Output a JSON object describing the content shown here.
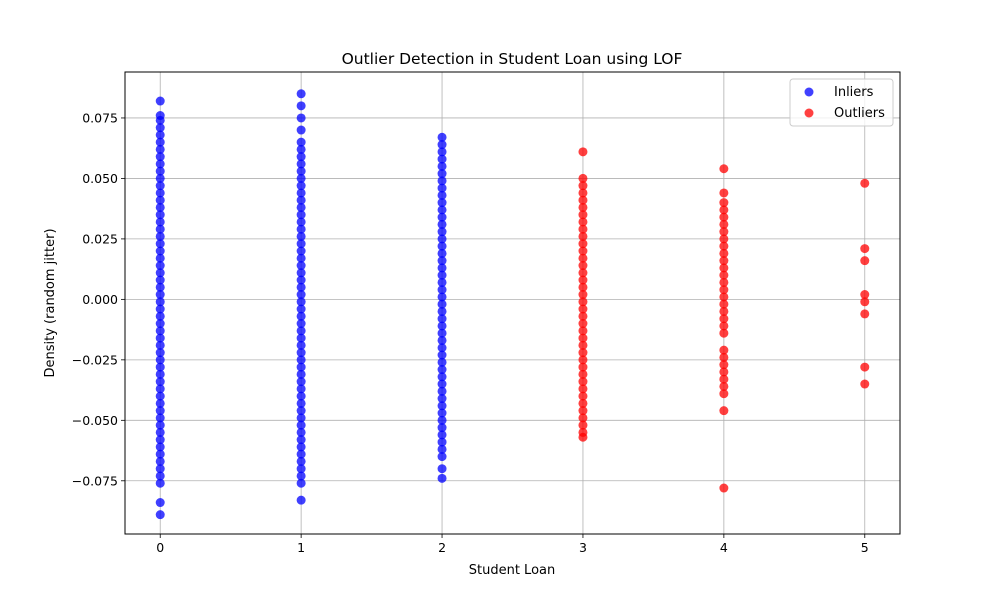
{
  "chart_data": {
    "type": "scatter",
    "title": "Outlier Detection in Student Loan using LOF",
    "xlabel": "Student Loan",
    "ylabel": "Density (random jitter)",
    "xlim": [
      -0.25,
      5.25
    ],
    "ylim": [
      -0.097,
      0.094
    ],
    "xticks": [
      0,
      1,
      2,
      3,
      4,
      5
    ],
    "xtick_labels": [
      "0",
      "1",
      "2",
      "3",
      "4",
      "5"
    ],
    "yticks": [
      -0.075,
      -0.05,
      -0.025,
      0.0,
      0.025,
      0.05,
      0.075
    ],
    "ytick_labels": [
      "−0.075",
      "−0.050",
      "−0.025",
      "0.000",
      "0.025",
      "0.050",
      "0.075"
    ],
    "grid": true,
    "legend_position": "top-right",
    "series": [
      {
        "name": "Inliers",
        "color": "#0000ff",
        "points": [
          {
            "x": 0,
            "y": 0.082
          },
          {
            "x": 0,
            "y": 0.076
          },
          {
            "x": 0,
            "y": 0.074
          },
          {
            "x": 0,
            "y": 0.071
          },
          {
            "x": 0,
            "y": 0.068
          },
          {
            "x": 0,
            "y": 0.065
          },
          {
            "x": 0,
            "y": 0.062
          },
          {
            "x": 0,
            "y": 0.059
          },
          {
            "x": 0,
            "y": 0.056
          },
          {
            "x": 0,
            "y": 0.053
          },
          {
            "x": 0,
            "y": 0.05
          },
          {
            "x": 0,
            "y": 0.047
          },
          {
            "x": 0,
            "y": 0.044
          },
          {
            "x": 0,
            "y": 0.041
          },
          {
            "x": 0,
            "y": 0.038
          },
          {
            "x": 0,
            "y": 0.035
          },
          {
            "x": 0,
            "y": 0.032
          },
          {
            "x": 0,
            "y": 0.029
          },
          {
            "x": 0,
            "y": 0.026
          },
          {
            "x": 0,
            "y": 0.023
          },
          {
            "x": 0,
            "y": 0.02
          },
          {
            "x": 0,
            "y": 0.017
          },
          {
            "x": 0,
            "y": 0.014
          },
          {
            "x": 0,
            "y": 0.011
          },
          {
            "x": 0,
            "y": 0.008
          },
          {
            "x": 0,
            "y": 0.005
          },
          {
            "x": 0,
            "y": 0.002
          },
          {
            "x": 0,
            "y": -0.001
          },
          {
            "x": 0,
            "y": -0.004
          },
          {
            "x": 0,
            "y": -0.007
          },
          {
            "x": 0,
            "y": -0.01
          },
          {
            "x": 0,
            "y": -0.013
          },
          {
            "x": 0,
            "y": -0.016
          },
          {
            "x": 0,
            "y": -0.019
          },
          {
            "x": 0,
            "y": -0.022
          },
          {
            "x": 0,
            "y": -0.025
          },
          {
            "x": 0,
            "y": -0.028
          },
          {
            "x": 0,
            "y": -0.031
          },
          {
            "x": 0,
            "y": -0.034
          },
          {
            "x": 0,
            "y": -0.037
          },
          {
            "x": 0,
            "y": -0.04
          },
          {
            "x": 0,
            "y": -0.043
          },
          {
            "x": 0,
            "y": -0.046
          },
          {
            "x": 0,
            "y": -0.049
          },
          {
            "x": 0,
            "y": -0.052
          },
          {
            "x": 0,
            "y": -0.055
          },
          {
            "x": 0,
            "y": -0.058
          },
          {
            "x": 0,
            "y": -0.061
          },
          {
            "x": 0,
            "y": -0.064
          },
          {
            "x": 0,
            "y": -0.067
          },
          {
            "x": 0,
            "y": -0.07
          },
          {
            "x": 0,
            "y": -0.073
          },
          {
            "x": 0,
            "y": -0.076
          },
          {
            "x": 0,
            "y": -0.084
          },
          {
            "x": 0,
            "y": -0.089
          },
          {
            "x": 1,
            "y": 0.085
          },
          {
            "x": 1,
            "y": 0.08
          },
          {
            "x": 1,
            "y": 0.075
          },
          {
            "x": 1,
            "y": 0.07
          },
          {
            "x": 1,
            "y": 0.065
          },
          {
            "x": 1,
            "y": 0.062
          },
          {
            "x": 1,
            "y": 0.059
          },
          {
            "x": 1,
            "y": 0.056
          },
          {
            "x": 1,
            "y": 0.053
          },
          {
            "x": 1,
            "y": 0.05
          },
          {
            "x": 1,
            "y": 0.047
          },
          {
            "x": 1,
            "y": 0.044
          },
          {
            "x": 1,
            "y": 0.041
          },
          {
            "x": 1,
            "y": 0.038
          },
          {
            "x": 1,
            "y": 0.035
          },
          {
            "x": 1,
            "y": 0.032
          },
          {
            "x": 1,
            "y": 0.029
          },
          {
            "x": 1,
            "y": 0.026
          },
          {
            "x": 1,
            "y": 0.023
          },
          {
            "x": 1,
            "y": 0.02
          },
          {
            "x": 1,
            "y": 0.017
          },
          {
            "x": 1,
            "y": 0.014
          },
          {
            "x": 1,
            "y": 0.011
          },
          {
            "x": 1,
            "y": 0.008
          },
          {
            "x": 1,
            "y": 0.005
          },
          {
            "x": 1,
            "y": 0.002
          },
          {
            "x": 1,
            "y": -0.001
          },
          {
            "x": 1,
            "y": -0.004
          },
          {
            "x": 1,
            "y": -0.007
          },
          {
            "x": 1,
            "y": -0.01
          },
          {
            "x": 1,
            "y": -0.013
          },
          {
            "x": 1,
            "y": -0.016
          },
          {
            "x": 1,
            "y": -0.019
          },
          {
            "x": 1,
            "y": -0.022
          },
          {
            "x": 1,
            "y": -0.025
          },
          {
            "x": 1,
            "y": -0.028
          },
          {
            "x": 1,
            "y": -0.031
          },
          {
            "x": 1,
            "y": -0.034
          },
          {
            "x": 1,
            "y": -0.037
          },
          {
            "x": 1,
            "y": -0.04
          },
          {
            "x": 1,
            "y": -0.043
          },
          {
            "x": 1,
            "y": -0.046
          },
          {
            "x": 1,
            "y": -0.049
          },
          {
            "x": 1,
            "y": -0.052
          },
          {
            "x": 1,
            "y": -0.055
          },
          {
            "x": 1,
            "y": -0.058
          },
          {
            "x": 1,
            "y": -0.061
          },
          {
            "x": 1,
            "y": -0.064
          },
          {
            "x": 1,
            "y": -0.067
          },
          {
            "x": 1,
            "y": -0.07
          },
          {
            "x": 1,
            "y": -0.073
          },
          {
            "x": 1,
            "y": -0.076
          },
          {
            "x": 1,
            "y": -0.083
          },
          {
            "x": 2,
            "y": 0.067
          },
          {
            "x": 2,
            "y": 0.064
          },
          {
            "x": 2,
            "y": 0.061
          },
          {
            "x": 2,
            "y": 0.058
          },
          {
            "x": 2,
            "y": 0.055
          },
          {
            "x": 2,
            "y": 0.052
          },
          {
            "x": 2,
            "y": 0.049
          },
          {
            "x": 2,
            "y": 0.046
          },
          {
            "x": 2,
            "y": 0.043
          },
          {
            "x": 2,
            "y": 0.04
          },
          {
            "x": 2,
            "y": 0.037
          },
          {
            "x": 2,
            "y": 0.034
          },
          {
            "x": 2,
            "y": 0.031
          },
          {
            "x": 2,
            "y": 0.028
          },
          {
            "x": 2,
            "y": 0.025
          },
          {
            "x": 2,
            "y": 0.022
          },
          {
            "x": 2,
            "y": 0.019
          },
          {
            "x": 2,
            "y": 0.016
          },
          {
            "x": 2,
            "y": 0.013
          },
          {
            "x": 2,
            "y": 0.01
          },
          {
            "x": 2,
            "y": 0.007
          },
          {
            "x": 2,
            "y": 0.004
          },
          {
            "x": 2,
            "y": 0.001
          },
          {
            "x": 2,
            "y": -0.002
          },
          {
            "x": 2,
            "y": -0.005
          },
          {
            "x": 2,
            "y": -0.008
          },
          {
            "x": 2,
            "y": -0.011
          },
          {
            "x": 2,
            "y": -0.014
          },
          {
            "x": 2,
            "y": -0.017
          },
          {
            "x": 2,
            "y": -0.02
          },
          {
            "x": 2,
            "y": -0.023
          },
          {
            "x": 2,
            "y": -0.026
          },
          {
            "x": 2,
            "y": -0.029
          },
          {
            "x": 2,
            "y": -0.032
          },
          {
            "x": 2,
            "y": -0.035
          },
          {
            "x": 2,
            "y": -0.038
          },
          {
            "x": 2,
            "y": -0.041
          },
          {
            "x": 2,
            "y": -0.044
          },
          {
            "x": 2,
            "y": -0.047
          },
          {
            "x": 2,
            "y": -0.05
          },
          {
            "x": 2,
            "y": -0.053
          },
          {
            "x": 2,
            "y": -0.056
          },
          {
            "x": 2,
            "y": -0.059
          },
          {
            "x": 2,
            "y": -0.062
          },
          {
            "x": 2,
            "y": -0.065
          },
          {
            "x": 2,
            "y": -0.07
          },
          {
            "x": 2,
            "y": -0.074
          }
        ]
      },
      {
        "name": "Outliers",
        "color": "#ff0000",
        "points": [
          {
            "x": 3,
            "y": 0.061
          },
          {
            "x": 3,
            "y": 0.05
          },
          {
            "x": 3,
            "y": 0.047
          },
          {
            "x": 3,
            "y": 0.044
          },
          {
            "x": 3,
            "y": 0.041
          },
          {
            "x": 3,
            "y": 0.038
          },
          {
            "x": 3,
            "y": 0.035
          },
          {
            "x": 3,
            "y": 0.032
          },
          {
            "x": 3,
            "y": 0.029
          },
          {
            "x": 3,
            "y": 0.026
          },
          {
            "x": 3,
            "y": 0.023
          },
          {
            "x": 3,
            "y": 0.02
          },
          {
            "x": 3,
            "y": 0.017
          },
          {
            "x": 3,
            "y": 0.014
          },
          {
            "x": 3,
            "y": 0.011
          },
          {
            "x": 3,
            "y": 0.008
          },
          {
            "x": 3,
            "y": 0.005
          },
          {
            "x": 3,
            "y": 0.002
          },
          {
            "x": 3,
            "y": -0.001
          },
          {
            "x": 3,
            "y": -0.004
          },
          {
            "x": 3,
            "y": -0.007
          },
          {
            "x": 3,
            "y": -0.01
          },
          {
            "x": 3,
            "y": -0.013
          },
          {
            "x": 3,
            "y": -0.016
          },
          {
            "x": 3,
            "y": -0.019
          },
          {
            "x": 3,
            "y": -0.022
          },
          {
            "x": 3,
            "y": -0.025
          },
          {
            "x": 3,
            "y": -0.028
          },
          {
            "x": 3,
            "y": -0.031
          },
          {
            "x": 3,
            "y": -0.034
          },
          {
            "x": 3,
            "y": -0.037
          },
          {
            "x": 3,
            "y": -0.04
          },
          {
            "x": 3,
            "y": -0.043
          },
          {
            "x": 3,
            "y": -0.046
          },
          {
            "x": 3,
            "y": -0.049
          },
          {
            "x": 3,
            "y": -0.052
          },
          {
            "x": 3,
            "y": -0.055
          },
          {
            "x": 3,
            "y": -0.057
          },
          {
            "x": 4,
            "y": 0.054
          },
          {
            "x": 4,
            "y": 0.044
          },
          {
            "x": 4,
            "y": 0.04
          },
          {
            "x": 4,
            "y": 0.037
          },
          {
            "x": 4,
            "y": 0.034
          },
          {
            "x": 4,
            "y": 0.031
          },
          {
            "x": 4,
            "y": 0.028
          },
          {
            "x": 4,
            "y": 0.025
          },
          {
            "x": 4,
            "y": 0.022
          },
          {
            "x": 4,
            "y": 0.019
          },
          {
            "x": 4,
            "y": 0.016
          },
          {
            "x": 4,
            "y": 0.013
          },
          {
            "x": 4,
            "y": 0.01
          },
          {
            "x": 4,
            "y": 0.007
          },
          {
            "x": 4,
            "y": 0.004
          },
          {
            "x": 4,
            "y": 0.001
          },
          {
            "x": 4,
            "y": -0.002
          },
          {
            "x": 4,
            "y": -0.005
          },
          {
            "x": 4,
            "y": -0.008
          },
          {
            "x": 4,
            "y": -0.011
          },
          {
            "x": 4,
            "y": -0.014
          },
          {
            "x": 4,
            "y": -0.021
          },
          {
            "x": 4,
            "y": -0.024
          },
          {
            "x": 4,
            "y": -0.027
          },
          {
            "x": 4,
            "y": -0.03
          },
          {
            "x": 4,
            "y": -0.033
          },
          {
            "x": 4,
            "y": -0.036
          },
          {
            "x": 4,
            "y": -0.039
          },
          {
            "x": 4,
            "y": -0.046
          },
          {
            "x": 4,
            "y": -0.078
          },
          {
            "x": 5,
            "y": 0.048
          },
          {
            "x": 5,
            "y": 0.021
          },
          {
            "x": 5,
            "y": 0.016
          },
          {
            "x": 5,
            "y": 0.002
          },
          {
            "x": 5,
            "y": -0.001
          },
          {
            "x": 5,
            "y": -0.006
          },
          {
            "x": 5,
            "y": -0.028
          },
          {
            "x": 5,
            "y": -0.035
          }
        ]
      }
    ]
  }
}
